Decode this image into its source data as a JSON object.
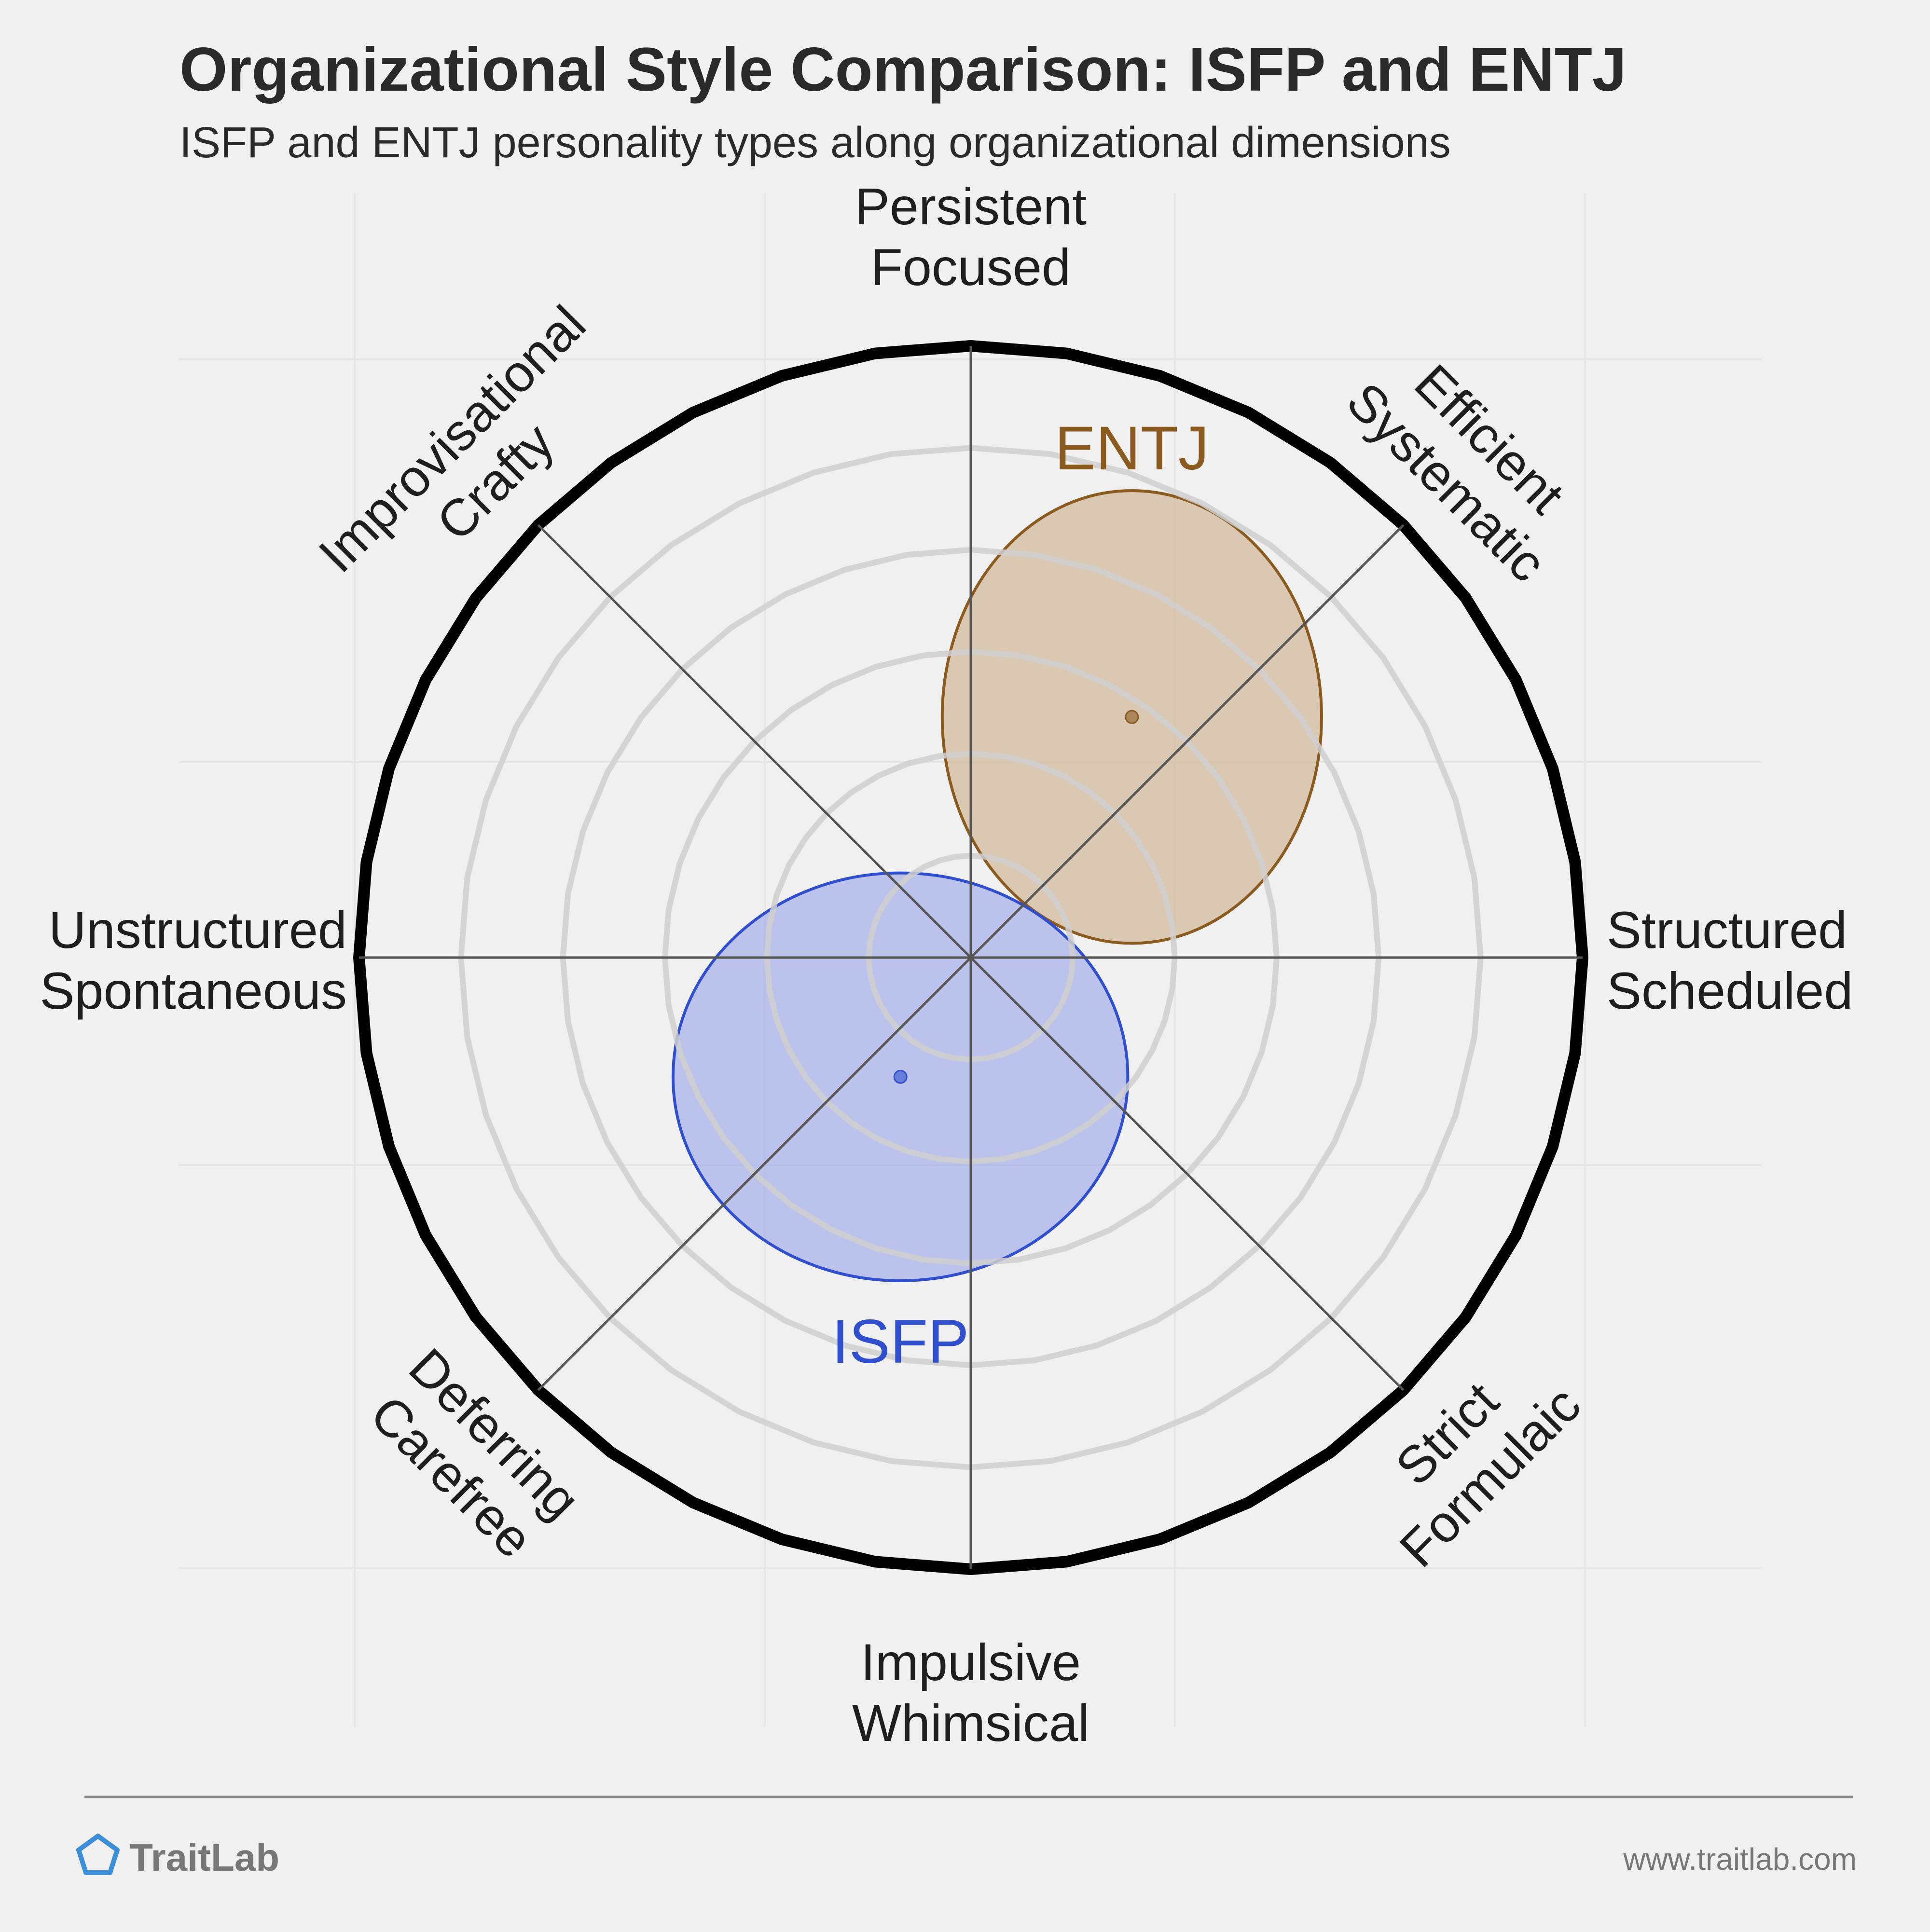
{
  "header": {
    "title": "Organizational Style Comparison: ISFP and ENTJ",
    "subtitle": "ISFP and ENTJ personality types along organizational dimensions"
  },
  "chart_data": {
    "type": "scatter",
    "title": "Organizational Style Comparison: ISFP and ENTJ",
    "subtitle": "ISFP and ENTJ personality types along organizational dimensions",
    "polar": true,
    "x_axis": {
      "negative": "Unstructured Spontaneous",
      "positive": "Structured Scheduled"
    },
    "y_axis": {
      "negative": "Impulsive Whimsical",
      "positive": "Persistent Focused"
    },
    "axes": [
      {
        "angle_deg": 90,
        "lines": [
          "Persistent",
          "Focused"
        ]
      },
      {
        "angle_deg": 45,
        "lines": [
          "Efficient",
          "Systematic"
        ]
      },
      {
        "angle_deg": 0,
        "lines": [
          "Structured",
          "Scheduled"
        ]
      },
      {
        "angle_deg": -45,
        "lines": [
          "Strict",
          "Formulaic"
        ]
      },
      {
        "angle_deg": -90,
        "lines": [
          "Impulsive",
          "Whimsical"
        ]
      },
      {
        "angle_deg": -135,
        "lines": [
          "Deferring",
          "Carefree"
        ]
      },
      {
        "angle_deg": 180,
        "lines": [
          "Unstructured",
          "Spontaneous"
        ]
      },
      {
        "angle_deg": 135,
        "lines": [
          "Improvisational",
          "Crafty"
        ]
      }
    ],
    "rings": [
      1,
      2,
      3,
      4,
      5,
      6
    ],
    "r_max": 6,
    "grid": true,
    "series": [
      {
        "name": "ENTJ",
        "x": 1.58,
        "y": 2.36,
        "rx": 1.86,
        "ry": 2.22,
        "color": "#8b5a1e",
        "fill": "#c8a882"
      },
      {
        "name": "ISFP",
        "x": -0.69,
        "y": -1.17,
        "rx": 2.23,
        "ry": 2.0,
        "color": "#2f4fcf",
        "fill": "#8f9de8"
      }
    ]
  },
  "footer": {
    "brand": "TraitLab",
    "url": "www.traitlab.com"
  },
  "colors": {
    "background": "#f0f0f0",
    "frame": "#000000",
    "ring": "#cfcfcf",
    "spoke": "#555555",
    "entj": "#8b5a1e",
    "isfp": "#2f4fcf",
    "logo": "#3d8ed8"
  }
}
